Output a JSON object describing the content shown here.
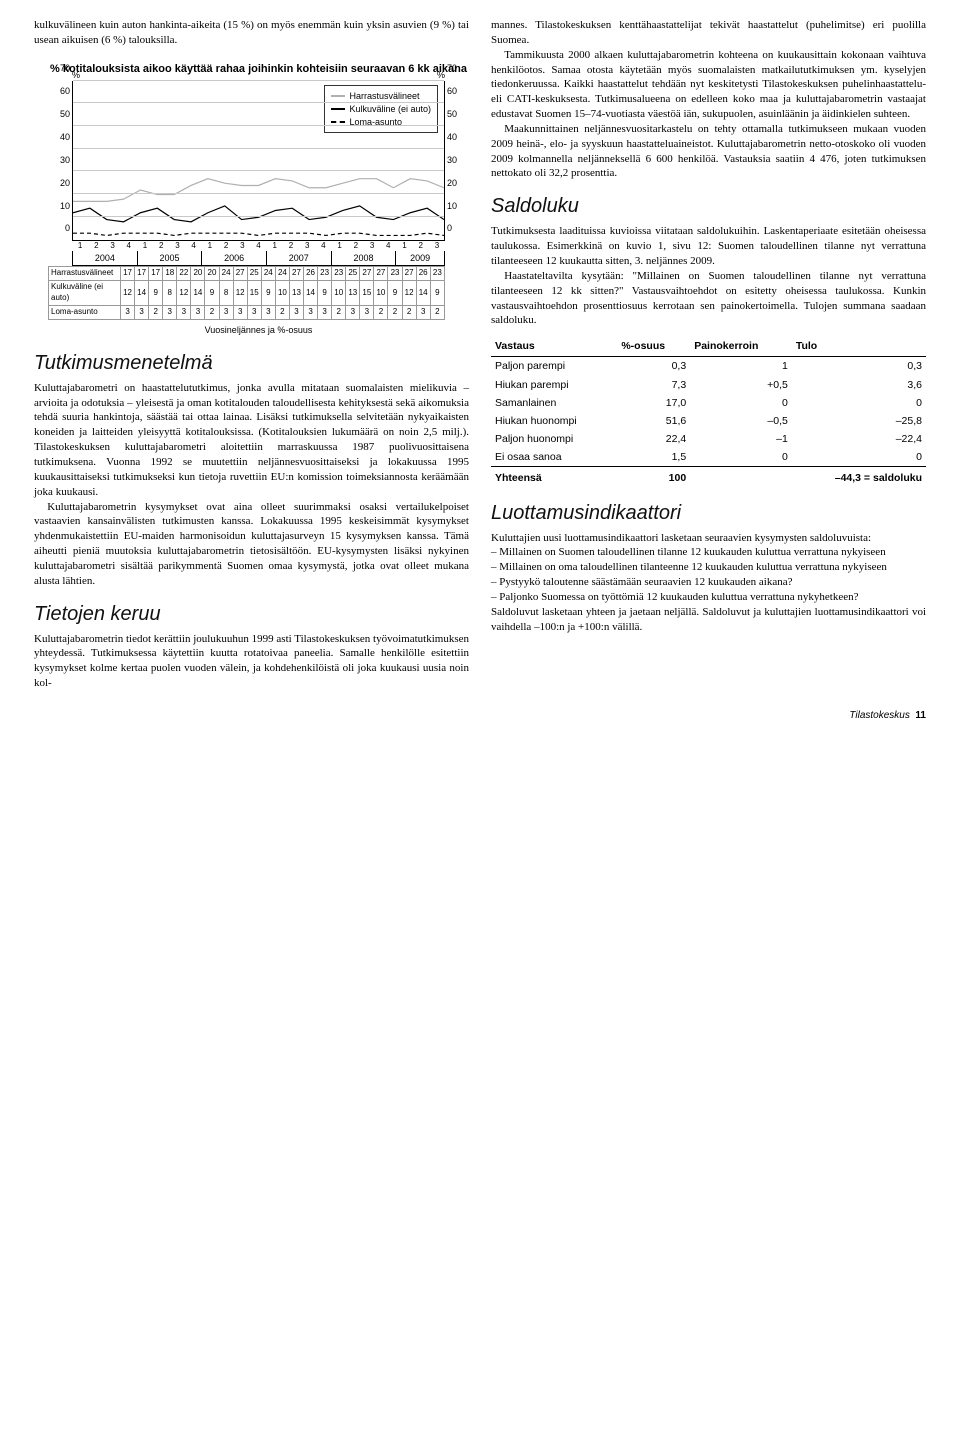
{
  "leftIntro": "kulkuvälineen kuin auton hankinta-aikeita (15 %) on myös enemmän kuin yksin asuvien (9 %) tai usean aikuisen (6 %) talouksilla.",
  "chart": {
    "title": "% kotitalouksista aikoo käyttää rahaa joihinkin kohteisiin seuraavan 6 kk aikana",
    "ylim": [
      0,
      70
    ],
    "ytick_step": 10,
    "grid_color": "#c8c8c8",
    "line_colors": {
      "harrastus": "#b0b0b0",
      "kulku": "#000000",
      "loma": "#000000"
    },
    "line_dash": {
      "harrastus": "0",
      "kulku": "0",
      "loma": "4 3"
    },
    "legend": {
      "harrastus": "Harrastusvälineet",
      "kulku": "Kulkuväline (ei auto)",
      "loma": "Loma-asunto"
    },
    "quarters": [
      "1",
      "2",
      "3",
      "4",
      "1",
      "2",
      "3",
      "4",
      "1",
      "2",
      "3",
      "4",
      "1",
      "2",
      "3",
      "4",
      "1",
      "2",
      "3",
      "4",
      "1",
      "2",
      "3"
    ],
    "years": [
      "2004",
      "2005",
      "2006",
      "2007",
      "2008",
      "2009"
    ],
    "row_labels": {
      "harrastus": "Harrastusvälineet",
      "kulku": "Kulkuväline (ei auto)",
      "loma": "Loma-asunto"
    },
    "series": {
      "harrastus": [
        17,
        17,
        17,
        18,
        22,
        20,
        20,
        24,
        27,
        25,
        24,
        24,
        27,
        26,
        23,
        23,
        25,
        27,
        27,
        23,
        27,
        26,
        23
      ],
      "kulku": [
        12,
        14,
        9,
        8,
        12,
        14,
        9,
        8,
        12,
        15,
        9,
        10,
        13,
        14,
        9,
        10,
        13,
        15,
        10,
        9,
        12,
        14,
        9
      ],
      "loma": [
        3,
        3,
        2,
        3,
        3,
        3,
        2,
        3,
        3,
        3,
        3,
        2,
        3,
        3,
        3,
        2,
        3,
        3,
        2,
        2,
        2,
        3,
        2
      ]
    },
    "axis_caption": "Vuosineljännes ja %-osuus"
  },
  "sections": {
    "tutkimusmenetelma_h": "Tutkimusmenetelmä",
    "tutkimusmenetelma_p1": "Kuluttajabarometri on haastattelututkimus, jonka avulla mitataan suomalaisten mielikuvia – arvioita ja odotuksia – yleisestä ja oman kotitalouden taloudellisesta kehityksestä sekä aikomuksia tehdä suuria hankintoja, säästää tai ottaa lainaa. Lisäksi tutkimuksella selvitetään nykyaikaisten koneiden ja laitteiden yleisyyttä kotitalouksissa. (Kotitalouksien lukumäärä on noin 2,5 milj.). Tilastokeskuksen kuluttajabarometri aloitettiin marraskuussa 1987 puolivuosittaisena tutkimuksena. Vuonna 1992 se muutettiin neljännesvuosittaiseksi ja lokakuussa 1995 kuukausittaiseksi tutkimukseksi kun tietoja ruvettiin EU:n komission toimeksiannosta keräämään joka kuukausi.",
    "tutkimusmenetelma_p2": "Kuluttajabarometrin kysymykset ovat aina olleet suurimmaksi osaksi vertailukelpoiset vastaavien kansainvälisten tutkimusten kanssa. Lokakuussa 1995 keskeisimmät kysymykset yhdenmukaistettiin EU-maiden harmonisoidun kuluttajasurveyn 15 kysymyksen kanssa. Tämä aiheutti pieniä muutoksia kuluttajabarometrin tietosisältöön. EU-kysymysten lisäksi nykyinen kuluttajabarometri sisältää parikymmentä Suomen omaa kysymystä, jotka ovat olleet mukana alusta lähtien.",
    "tietojen_keruu_h": "Tietojen keruu",
    "tietojen_keruu_p": "Kuluttajabarometrin tiedot kerättiin joulukuuhun 1999 asti Tilastokeskuksen työvoimatutkimuksen yhteydessä. Tutkimuksessa käytettiin kuutta rotatoivaa paneelia. Samalle henkilölle esitettiin kysymykset kolme kertaa puolen vuoden välein, ja kohdehenkilöistä oli joka kuukausi uusia noin kol-"
  },
  "right": {
    "para1a": "mannes. Tilastokeskuksen kenttähaastattelijat tekivät haastattelut (puhelimitse) eri puolilla Suomea.",
    "para1b": "Tammikuusta 2000 alkaen kuluttajabarometrin kohteena on kuukausittain kokonaan vaihtuva henkilöotos. Samaa otosta käytetään myös suomalaisten matkailututkimuksen ym. kyselyjen tiedonkeruussa. Kaikki haastattelut tehdään nyt keskitetysti Tilastokeskuksen puhelinhaastattelu- eli CATI-keskuksesta. Tutkimusalueena on edelleen koko maa ja kuluttajabarometrin vastaajat edustavat Suomen 15–74-vuotiasta väestöä iän, sukupuolen, asuinläänin ja äidinkielen suhteen.",
    "para1c": "Maakunnittainen neljännesvuositarkastelu on tehty ottamalla tutkimukseen mukaan vuoden 2009 heinä-, elo- ja syyskuun haastatteluaineistot. Kuluttajabarometrin netto-otoskoko oli vuoden 2009 kolmannella neljänneksellä 6 600 henkilöä. Vastauksia saatiin 4 476, joten tutkimuksen nettokato oli 32,2 prosenttia.",
    "saldoluku_h": "Saldoluku",
    "saldoluku_p1": "Tutkimuksesta laadituissa kuvioissa viitataan saldolukuihin. Laskentaperiaate esitetään oheisessa taulukossa. Esimerkkinä on kuvio 1, sivu 12: Suomen taloudellinen tilanne nyt verrattuna tilanteeseen 12 kuukautta sitten, 3. neljännes 2009.",
    "saldoluku_p2": "Haastateltavilta kysytään: \"Millainen on Suomen taloudellinen tilanne nyt verrattuna tilanteeseen 12 kk sitten?\" Vastausvaihtoehdot on esitetty oheisessa taulukossa. Kunkin vastausvaihtoehdon prosenttiosuus kerrotaan sen painokertoimella. Tulojen summana saadaan saldoluku.",
    "luotto_h": "Luottamusindikaattori",
    "luotto_p1": "Kuluttajien uusi luottamusindikaattori lasketaan seuraavien kysymysten saldoluvuista:",
    "luotto_li1": "Millainen on Suomen taloudellinen tilanne 12 kuukauden kuluttua verrattuna nykyiseen",
    "luotto_li2": "Millainen on oma taloudellinen tilanteenne 12 kuukauden kuluttua verrattuna nykyiseen",
    "luotto_li3": "Pystyykö taloutenne säästämään seuraavien 12 kuukauden aikana?",
    "luotto_li4": "Paljonko Suomessa on työttömiä 12 kuukauden kuluttua verrattuna nykyhetkeen?",
    "luotto_p2": "Saldoluvut lasketaan yhteen ja jaetaan neljällä. Saldoluvut ja kuluttajien luottamusindikaattori voi vaihdella –100:n ja +100:n välillä."
  },
  "vastaus": {
    "head": [
      "Vastaus",
      "%-osuus",
      "Painokerroin",
      "Tulo"
    ],
    "rows": [
      [
        "Paljon parempi",
        "0,3",
        "1",
        "0,3"
      ],
      [
        "Hiukan parempi",
        "7,3",
        "+0,5",
        "3,6"
      ],
      [
        "Samanlainen",
        "17,0",
        "0",
        "0"
      ],
      [
        "Hiukan huonompi",
        "51,6",
        "–0,5",
        "–25,8"
      ],
      [
        "Paljon huonompi",
        "22,4",
        "–1",
        "–22,4"
      ],
      [
        "Ei osaa sanoa",
        "1,5",
        "0",
        "0"
      ]
    ],
    "total_label": "Yhteensä",
    "total_pct": "100",
    "total_sum": "–44,3  = saldoluku"
  },
  "footer": {
    "source": "Tilastokeskus",
    "page": "11"
  }
}
